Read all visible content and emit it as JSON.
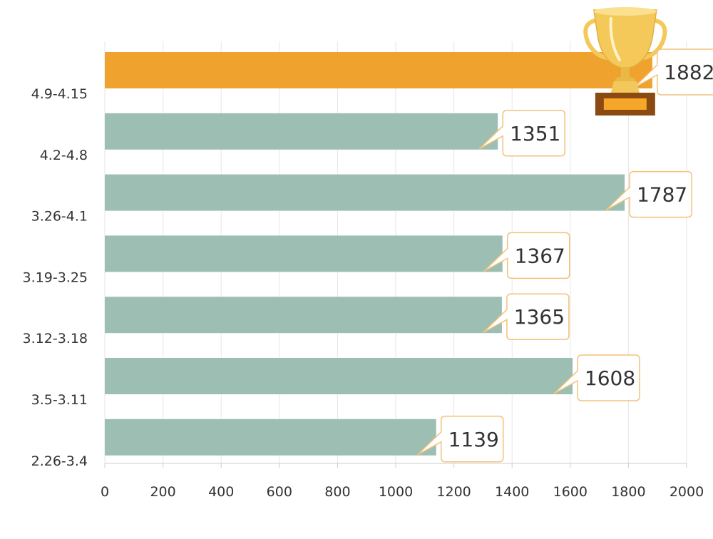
{
  "chart_data": {
    "type": "bar",
    "orientation": "horizontal",
    "categories": [
      "4.9-4.15",
      "4.2-4.8",
      "3.26-4.1",
      "3.19-3.25",
      "3.12-3.18",
      "3.5-3.11",
      "2.26-3.4"
    ],
    "values": [
      1882,
      1351,
      1787,
      1367,
      1365,
      1608,
      1139
    ],
    "xlim": [
      0,
      2000
    ],
    "xticks": [
      "0",
      "200",
      "400",
      "600",
      "800",
      "1000",
      "1200",
      "1400",
      "1600",
      "1800",
      "2000"
    ],
    "grid": true,
    "highlight_category": "4.9-4.15",
    "highlight_icon": "trophy-icon",
    "colors": {
      "bar": "#9dbfb3",
      "highlight_bar": "#f0a22e",
      "callout_border": "#f2c27a",
      "callout_fill": "#ffffff",
      "grid": "#e6e6e6",
      "text": "#333333",
      "trophy_gold": "#f5c85a",
      "trophy_base": "#8b4a12"
    }
  }
}
